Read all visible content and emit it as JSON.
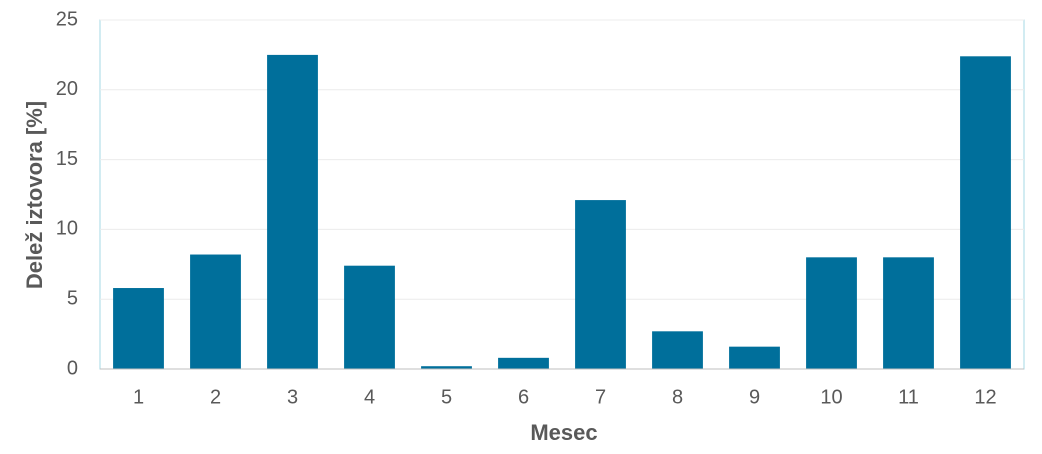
{
  "chart_data": {
    "type": "bar",
    "x_label": "Mesec",
    "y_label": "Delež iztovora [%]",
    "categories": [
      "1",
      "2",
      "3",
      "4",
      "5",
      "6",
      "7",
      "8",
      "9",
      "10",
      "11",
      "12"
    ],
    "values": [
      5.8,
      8.2,
      22.5,
      7.4,
      0.2,
      0.8,
      12.1,
      2.7,
      1.6,
      8.0,
      8.0,
      22.4
    ],
    "color": "#006f9b",
    "ylim": [
      0,
      25
    ],
    "yticks": [
      0,
      5,
      10,
      15,
      20,
      25
    ],
    "grid": true
  }
}
